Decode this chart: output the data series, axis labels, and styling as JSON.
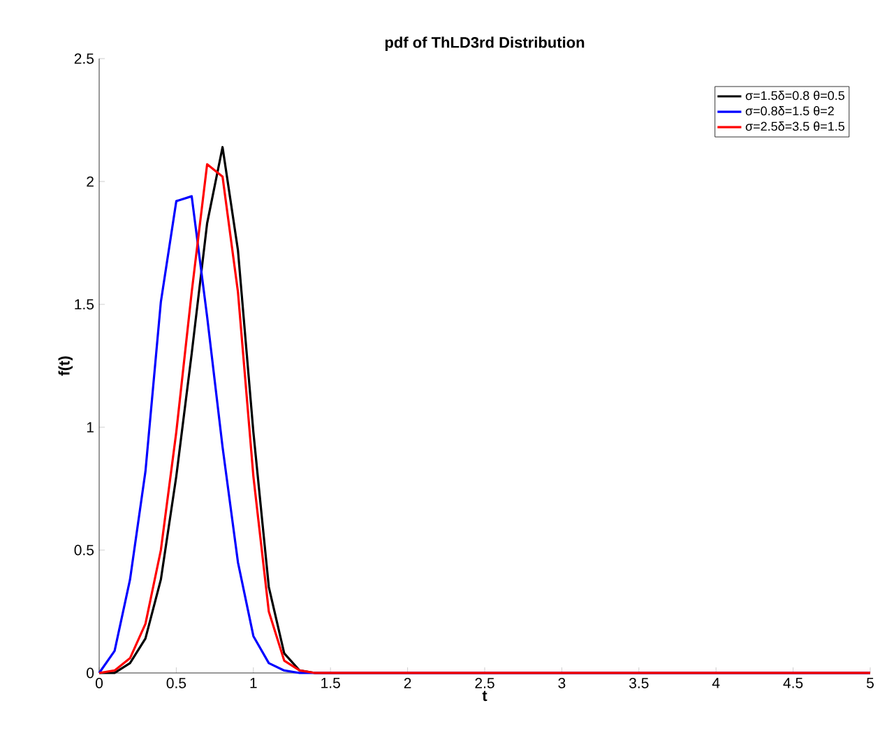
{
  "chart_data": {
    "type": "line",
    "title": "pdf of ThLD3rd Distribution",
    "xlabel": "t",
    "ylabel": "f(t)",
    "xlim": [
      0,
      5
    ],
    "ylim": [
      0,
      2.5
    ],
    "xticks": [
      0,
      0.5,
      1,
      1.5,
      2,
      2.5,
      3,
      3.5,
      4,
      4.5,
      5
    ],
    "yticks": [
      0,
      0.5,
      1,
      1.5,
      2,
      2.5
    ],
    "legend": "top right",
    "grid": false,
    "marker": "none",
    "line_style": "solid",
    "series": [
      {
        "name": "σ=1.5δ=0.8 θ=0.5",
        "color": "#000000",
        "x": [
          0,
          0.1,
          0.2,
          0.3,
          0.4,
          0.5,
          0.6,
          0.7,
          0.8,
          0.9,
          1.0,
          1.1,
          1.2,
          1.3,
          1.4,
          5
        ],
        "values": [
          0,
          0.0,
          0.04,
          0.14,
          0.38,
          0.8,
          1.3,
          1.83,
          2.14,
          1.72,
          0.98,
          0.35,
          0.08,
          0.01,
          0,
          0
        ]
      },
      {
        "name": "σ=0.8δ=1.5  θ=2",
        "color": "#0000ff",
        "x": [
          0,
          0.1,
          0.2,
          0.3,
          0.4,
          0.5,
          0.6,
          0.7,
          0.8,
          0.9,
          1.0,
          1.1,
          1.2,
          1.3,
          5
        ],
        "values": [
          0,
          0.09,
          0.38,
          0.82,
          1.51,
          1.92,
          1.94,
          1.45,
          0.92,
          0.45,
          0.15,
          0.04,
          0.01,
          0,
          0
        ]
      },
      {
        "name": "σ=2.5δ=3.5  θ=1.5",
        "color": "#ff0000",
        "x": [
          0,
          0.1,
          0.2,
          0.3,
          0.4,
          0.5,
          0.6,
          0.7,
          0.8,
          0.9,
          1.0,
          1.1,
          1.2,
          1.3,
          1.4,
          5
        ],
        "values": [
          0,
          0.01,
          0.06,
          0.2,
          0.5,
          0.98,
          1.55,
          2.07,
          2.02,
          1.55,
          0.8,
          0.25,
          0.05,
          0.01,
          0,
          0
        ]
      }
    ]
  }
}
